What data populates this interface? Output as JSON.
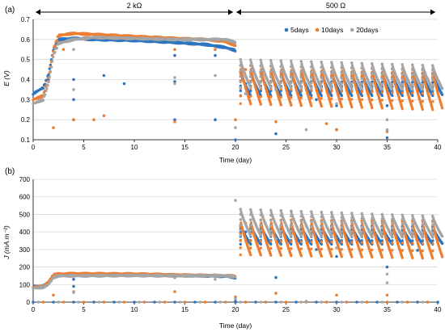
{
  "annotations": {
    "range1": "2 kΩ",
    "range2": "500 Ω"
  },
  "colors": {
    "5days": "#2e75c0",
    "10days": "#ed7d31",
    "20days": "#a5a5a5"
  },
  "chart_data": [
    {
      "panel": "(a)",
      "type": "scatter",
      "title": "",
      "xlabel": "Time (day)",
      "ylabel": "E (V)",
      "xlim": [
        0,
        40
      ],
      "ylim": [
        0.1,
        0.7
      ],
      "xticks": [
        0,
        5,
        10,
        15,
        20,
        25,
        30,
        35,
        40
      ],
      "yticks": [
        0.1,
        0.2,
        0.3,
        0.4,
        0.5,
        0.6,
        0.7
      ],
      "ytick_labels": [
        "0.1",
        "0.2",
        "0.3",
        "0.4",
        "0.5",
        "0.6",
        "0.7"
      ],
      "grid": true,
      "legend_position": "top-right",
      "series": [
        {
          "name": "5days",
          "key": "5days",
          "plateau": [
            [
              0,
              0.33
            ],
            [
              1,
              0.36
            ],
            [
              1.5,
              0.42
            ],
            [
              2,
              0.55
            ],
            [
              2.5,
              0.6
            ],
            [
              4,
              0.605
            ],
            [
              6,
              0.6
            ],
            [
              10,
              0.595
            ],
            [
              14,
              0.585
            ],
            [
              17,
              0.575
            ],
            [
              19,
              0.56
            ],
            [
              20,
              0.545
            ]
          ],
          "cycles2": {
            "start": 20.5,
            "end": 40,
            "period": 1,
            "peak": 0.44,
            "trough": 0.32,
            "peak_end": 0.43,
            "trough_end": 0.32
          },
          "outliers": [
            [
              1.5,
              0.4
            ],
            [
              4,
              0.4
            ],
            [
              4,
              0.3
            ],
            [
              4,
              0.2
            ],
            [
              7,
              0.42
            ],
            [
              9,
              0.38
            ],
            [
              14,
              0.52
            ],
            [
              14,
              0.39
            ],
            [
              14,
              0.2
            ],
            [
              18,
              0.52
            ],
            [
              18,
              0.2
            ],
            [
              20,
              0.1
            ],
            [
              21,
              0.38
            ],
            [
              24,
              0.13
            ],
            [
              28,
              0.3
            ],
            [
              30,
              0.27
            ],
            [
              30,
              0.15
            ],
            [
              35,
              0.11
            ],
            [
              35,
              0.27
            ]
          ]
        },
        {
          "name": "10days",
          "key": "10days",
          "plateau": [
            [
              0,
              0.3
            ],
            [
              1,
              0.32
            ],
            [
              1.5,
              0.4
            ],
            [
              2,
              0.55
            ],
            [
              2.5,
              0.62
            ],
            [
              4,
              0.63
            ],
            [
              6,
              0.625
            ],
            [
              10,
              0.615
            ],
            [
              14,
              0.605
            ],
            [
              17,
              0.6
            ],
            [
              19,
              0.59
            ],
            [
              20,
              0.57
            ]
          ],
          "cycles2": {
            "start": 20.5,
            "end": 40,
            "period": 1,
            "peak": 0.47,
            "trough": 0.28,
            "peak_end": 0.45,
            "trough_end": 0.25
          },
          "outliers": [
            [
              2,
              0.16
            ],
            [
              3,
              0.55
            ],
            [
              4,
              0.2
            ],
            [
              6,
              0.2
            ],
            [
              7,
              0.22
            ],
            [
              14,
              0.19
            ],
            [
              14,
              0.55
            ],
            [
              18,
              0.55
            ],
            [
              20,
              0.2
            ],
            [
              21,
              0.45
            ],
            [
              24,
              0.19
            ],
            [
              29,
              0.18
            ],
            [
              30,
              0.15
            ],
            [
              35,
              0.14
            ]
          ]
        },
        {
          "name": "20days",
          "key": "20days",
          "plateau": [
            [
              0,
              0.28
            ],
            [
              1,
              0.3
            ],
            [
              1.5,
              0.38
            ],
            [
              2,
              0.52
            ],
            [
              2.5,
              0.58
            ],
            [
              4,
              0.6
            ],
            [
              6,
              0.61
            ],
            [
              10,
              0.605
            ],
            [
              14,
              0.6
            ],
            [
              17,
              0.6
            ],
            [
              19,
              0.6
            ],
            [
              20,
              0.585
            ]
          ],
          "cycles2": {
            "start": 20.5,
            "end": 40,
            "period": 1,
            "peak": 0.5,
            "trough": 0.36,
            "peak_end": 0.47,
            "trough_end": 0.35
          },
          "outliers": [
            [
              4,
              0.55
            ],
            [
              4,
              0.35
            ],
            [
              14,
              0.41
            ],
            [
              14,
              0.38
            ],
            [
              18,
              0.42
            ],
            [
              20,
              0.16
            ],
            [
              21,
              0.33
            ],
            [
              24,
              0.35
            ],
            [
              27,
              0.15
            ],
            [
              30,
              0.28
            ],
            [
              35,
              0.2
            ],
            [
              35,
              0.15
            ]
          ]
        }
      ]
    },
    {
      "panel": "(b)",
      "type": "scatter",
      "title": "",
      "xlabel": "Time (day)",
      "ylabel": "J (mA m⁻²)",
      "xlim": [
        0,
        40
      ],
      "ylim": [
        0,
        700
      ],
      "xticks": [
        0,
        5,
        10,
        15,
        20,
        25,
        30,
        35,
        40
      ],
      "yticks": [
        0,
        100,
        200,
        300,
        400,
        500,
        600,
        700
      ],
      "ytick_labels": [
        "0",
        "100",
        "200",
        "300",
        "400",
        "500",
        "600",
        "700"
      ],
      "grid": true,
      "series": [
        {
          "name": "5days",
          "key": "5days",
          "plateau": [
            [
              0,
              88
            ],
            [
              1,
              92
            ],
            [
              1.5,
              110
            ],
            [
              2,
              150
            ],
            [
              2.5,
              155
            ],
            [
              4,
              157
            ],
            [
              10,
              155
            ],
            [
              14,
              153
            ],
            [
              17,
              150
            ],
            [
              19,
              148
            ],
            [
              20,
              140
            ]
          ],
          "cycles2": {
            "start": 20.5,
            "end": 40,
            "period": 1,
            "peak": 440,
            "trough": 330,
            "peak_end": 430,
            "trough_end": 330
          },
          "outliers": [
            [
              4,
              90
            ],
            [
              4,
              130
            ],
            [
              14,
              140
            ],
            [
              18,
              155
            ],
            [
              20,
              5
            ],
            [
              21,
              400
            ],
            [
              24,
              140
            ],
            [
              28,
              300
            ],
            [
              30,
              260
            ],
            [
              35,
              200
            ],
            [
              38,
              295
            ]
          ],
          "zeros": [
            0,
            2,
            4,
            6,
            8,
            10,
            12,
            14,
            16,
            18,
            20,
            22,
            24,
            26,
            28,
            30,
            32,
            34,
            36,
            38,
            40
          ]
        },
        {
          "name": "10days",
          "key": "10days",
          "plateau": [
            [
              0,
              85
            ],
            [
              1,
              90
            ],
            [
              1.5,
              115
            ],
            [
              2,
              155
            ],
            [
              2.5,
              160
            ],
            [
              4,
              162
            ],
            [
              10,
              160
            ],
            [
              14,
              155
            ],
            [
              17,
              152
            ],
            [
              19,
              150
            ],
            [
              20,
              148
            ]
          ],
          "cycles2": {
            "start": 20.5,
            "end": 40,
            "period": 1,
            "peak": 470,
            "trough": 270,
            "peak_end": 460,
            "trough_end": 250
          },
          "outliers": [
            [
              1,
              95
            ],
            [
              2,
              40
            ],
            [
              4,
              60
            ],
            [
              14,
              60
            ],
            [
              20,
              30
            ],
            [
              21,
              450
            ],
            [
              24,
              50
            ],
            [
              30,
              40
            ],
            [
              35,
              40
            ]
          ],
          "zeros": [
            1,
            3,
            5,
            7,
            9,
            11,
            13,
            15,
            17,
            19,
            21,
            23,
            25,
            27,
            29,
            31,
            33,
            35,
            37,
            39
          ]
        },
        {
          "name": "20days",
          "key": "20days",
          "plateau": [
            [
              0,
              80
            ],
            [
              1,
              85
            ],
            [
              1.5,
              100
            ],
            [
              2,
              140
            ],
            [
              2.5,
              150
            ],
            [
              4,
              150
            ],
            [
              10,
              152
            ],
            [
              14,
              150
            ],
            [
              17,
              150
            ],
            [
              19,
              150
            ],
            [
              20,
              145
            ]
          ],
          "cycles2": {
            "start": 20.5,
            "end": 40,
            "period": 1,
            "peak": 530,
            "trough": 380,
            "peak_end": 490,
            "trough_end": 370
          },
          "outliers": [
            [
              4,
              55
            ],
            [
              14,
              140
            ],
            [
              18,
              130
            ],
            [
              20,
              580
            ],
            [
              20,
              20
            ],
            [
              24,
              360
            ],
            [
              27,
              5
            ],
            [
              30,
              310
            ],
            [
              35,
              160
            ],
            [
              35,
              110
            ]
          ],
          "zeros": [
            0.5,
            2.5,
            4.5,
            6.5,
            8.5,
            10.5,
            12.5,
            14.5,
            16.5,
            18.5,
            20.5,
            22.5,
            24.5,
            26.5,
            28.5,
            30.5,
            32.5,
            34.5,
            36.5,
            38.5
          ]
        }
      ]
    }
  ]
}
